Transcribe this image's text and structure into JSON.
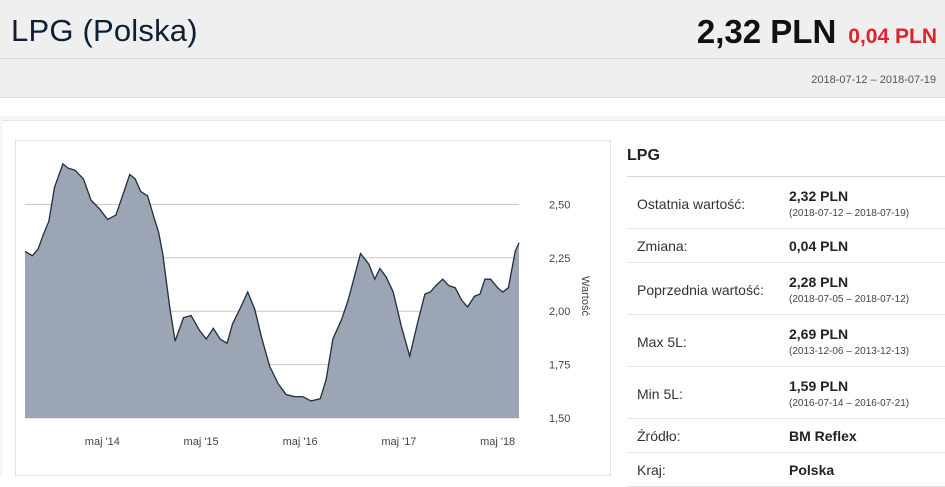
{
  "header": {
    "title": "LPG (Polska)",
    "price": "2,32 PLN",
    "change": "0,04 PLN",
    "date_range": "2018-07-12 – 2018-07-19",
    "change_color": "#e0232b"
  },
  "info": {
    "title": "LPG",
    "rows": [
      {
        "label": "Ostatnia wartość:",
        "value": "2,32 PLN",
        "sub": "(2018-07-12 – 2018-07-19)"
      },
      {
        "label": "Zmiana:",
        "value": "0,04 PLN",
        "sub": ""
      },
      {
        "label": "Poprzednia wartość:",
        "value": "2,28 PLN",
        "sub": "(2018-07-05 – 2018-07-12)"
      },
      {
        "label": "Max 5L:",
        "value": "2,69 PLN",
        "sub": "(2013-12-06 – 2013-12-13)"
      },
      {
        "label": "Min 5L:",
        "value": "1,59 PLN",
        "sub": "(2016-07-14 – 2016-07-21)"
      },
      {
        "label": "Źródło:",
        "value": "BM Reflex",
        "sub": ""
      },
      {
        "label": "Kraj:",
        "value": "Polska",
        "sub": ""
      }
    ]
  },
  "chart_data": {
    "type": "area",
    "title": "",
    "xlabel": "",
    "ylabel": "Wartość",
    "x_ticks": [
      "maj '14",
      "maj '15",
      "maj '16",
      "maj '17",
      "maj '18"
    ],
    "y_ticks": [
      "1,50",
      "1,75",
      "2,00",
      "2,25",
      "2,50"
    ],
    "ylim": [
      1.5,
      2.75
    ],
    "xlim": [
      "2013-07-19",
      "2018-07-19"
    ],
    "grid": true,
    "fill_color": "#9ba5b3",
    "line_color": "#1f2d3d",
    "series": [
      {
        "name": "",
        "points": [
          [
            "2013-07-19",
            2.28
          ],
          [
            "2013-08-15",
            2.26
          ],
          [
            "2013-09-05",
            2.29
          ],
          [
            "2013-09-25",
            2.36
          ],
          [
            "2013-10-15",
            2.42
          ],
          [
            "2013-11-05",
            2.58
          ],
          [
            "2013-12-06",
            2.69
          ],
          [
            "2013-12-25",
            2.67
          ],
          [
            "2014-01-20",
            2.66
          ],
          [
            "2014-02-20",
            2.62
          ],
          [
            "2014-03-20",
            2.52
          ],
          [
            "2014-04-20",
            2.48
          ],
          [
            "2014-05-20",
            2.43
          ],
          [
            "2014-06-20",
            2.45
          ],
          [
            "2014-07-20",
            2.56
          ],
          [
            "2014-08-10",
            2.64
          ],
          [
            "2014-08-30",
            2.62
          ],
          [
            "2014-09-20",
            2.56
          ],
          [
            "2014-10-15",
            2.54
          ],
          [
            "2014-11-10",
            2.43
          ],
          [
            "2014-11-25",
            2.37
          ],
          [
            "2014-12-10",
            2.27
          ],
          [
            "2015-01-05",
            2.02
          ],
          [
            "2015-01-25",
            1.86
          ],
          [
            "2015-02-25",
            1.97
          ],
          [
            "2015-03-25",
            1.98
          ],
          [
            "2015-04-25",
            1.91
          ],
          [
            "2015-05-20",
            1.87
          ],
          [
            "2015-06-15",
            1.92
          ],
          [
            "2015-07-10",
            1.87
          ],
          [
            "2015-08-05",
            1.85
          ],
          [
            "2015-08-25",
            1.94
          ],
          [
            "2015-09-25",
            2.02
          ],
          [
            "2015-10-20",
            2.09
          ],
          [
            "2015-11-15",
            2.01
          ],
          [
            "2015-12-10",
            1.88
          ],
          [
            "2016-01-10",
            1.74
          ],
          [
            "2016-02-10",
            1.66
          ],
          [
            "2016-03-10",
            1.61
          ],
          [
            "2016-04-10",
            1.6
          ],
          [
            "2016-05-10",
            1.6
          ],
          [
            "2016-06-10",
            1.58
          ],
          [
            "2016-07-14",
            1.59
          ],
          [
            "2016-08-05",
            1.68
          ],
          [
            "2016-08-30",
            1.87
          ],
          [
            "2016-10-01",
            1.96
          ],
          [
            "2016-10-25",
            2.05
          ],
          [
            "2016-11-15",
            2.15
          ],
          [
            "2016-12-10",
            2.27
          ],
          [
            "2017-01-10",
            2.22
          ],
          [
            "2017-02-01",
            2.15
          ],
          [
            "2017-02-20",
            2.2
          ],
          [
            "2017-03-15",
            2.16
          ],
          [
            "2017-04-10",
            2.09
          ],
          [
            "2017-05-10",
            1.93
          ],
          [
            "2017-06-10",
            1.79
          ],
          [
            "2017-07-10",
            1.95
          ],
          [
            "2017-08-05",
            2.08
          ],
          [
            "2017-08-25",
            2.09
          ],
          [
            "2017-09-15",
            2.12
          ],
          [
            "2017-10-10",
            2.15
          ],
          [
            "2017-11-01",
            2.12
          ],
          [
            "2017-11-25",
            2.11
          ],
          [
            "2017-12-20",
            2.05
          ],
          [
            "2018-01-10",
            2.02
          ],
          [
            "2018-02-05",
            2.07
          ],
          [
            "2018-02-25",
            2.08
          ],
          [
            "2018-03-15",
            2.15
          ],
          [
            "2018-04-05",
            2.15
          ],
          [
            "2018-05-01",
            2.11
          ],
          [
            "2018-05-20",
            2.09
          ],
          [
            "2018-06-10",
            2.11
          ],
          [
            "2018-07-05",
            2.28
          ],
          [
            "2018-07-19",
            2.32
          ]
        ]
      }
    ]
  }
}
